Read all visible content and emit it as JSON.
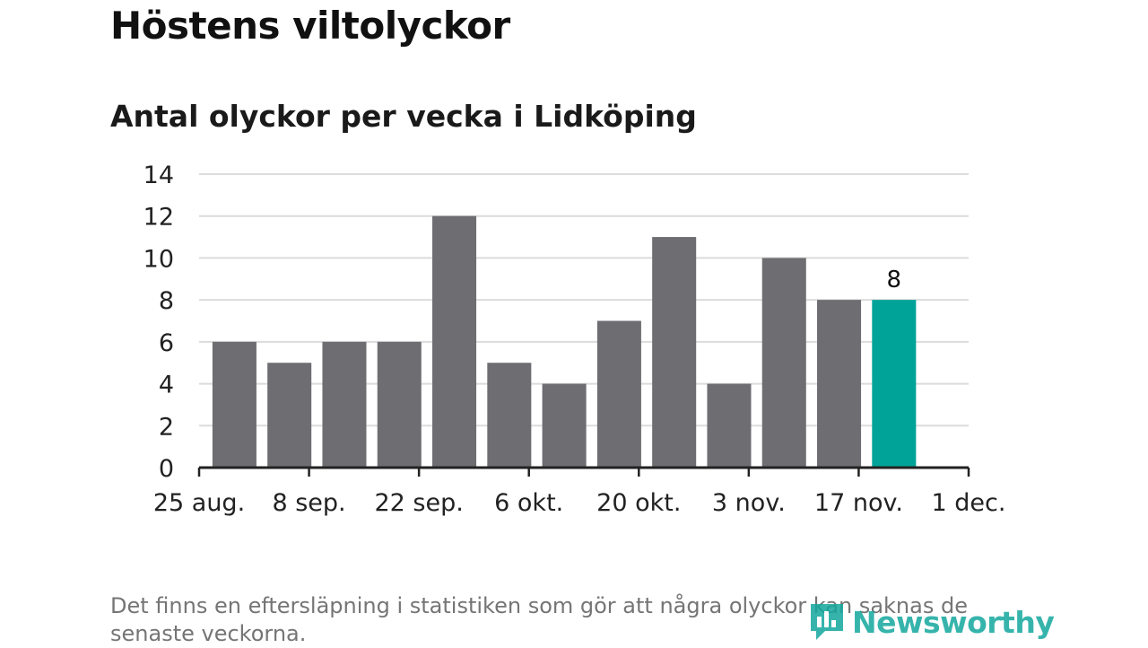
{
  "title": "Höstens viltolyckor",
  "subtitle": "Antal olyckor per vecka i Lidköping",
  "footnote": "Det finns en eftersläpning i statistiken som gör att några olyckor kan saknas de senaste veckorna.",
  "brand": {
    "name": "Newsworthy",
    "color": "#13a89e"
  },
  "colors": {
    "bar": "#6e6d72",
    "highlight": "#00a398",
    "grid": "#dcdcdc",
    "axis": "#222222",
    "text": "#222222"
  },
  "chart_data": {
    "type": "bar",
    "x": [
      "2019-08-26",
      "2019-09-02",
      "2019-09-09",
      "2019-09-16",
      "2019-09-23",
      "2019-09-30",
      "2019-10-07",
      "2019-10-14",
      "2019-10-21",
      "2019-10-28",
      "2019-11-04",
      "2019-11-11",
      "2019-11-18"
    ],
    "values": [
      6,
      5,
      6,
      6,
      12,
      5,
      4,
      7,
      11,
      4,
      10,
      8,
      8
    ],
    "highlight_index": 12,
    "data_labels": [
      {
        "index": 12,
        "text": "8"
      }
    ],
    "xticks": [
      {
        "date": "2019-08-25",
        "label": "25 aug."
      },
      {
        "date": "2019-09-08",
        "label": "8 sep."
      },
      {
        "date": "2019-09-22",
        "label": "22 sep."
      },
      {
        "date": "2019-10-06",
        "label": "6 okt."
      },
      {
        "date": "2019-10-20",
        "label": "20 okt."
      },
      {
        "date": "2019-11-03",
        "label": "3 nov."
      },
      {
        "date": "2019-11-17",
        "label": "17 nov."
      },
      {
        "date": "2019-12-01",
        "label": "1 dec."
      }
    ],
    "yticks": [
      0,
      2,
      4,
      6,
      8,
      10,
      12,
      14
    ],
    "ylim": [
      0,
      14
    ],
    "xlim": [
      "2019-08-25",
      "2019-12-01"
    ],
    "grid": true,
    "xlabel": "",
    "ylabel": ""
  }
}
